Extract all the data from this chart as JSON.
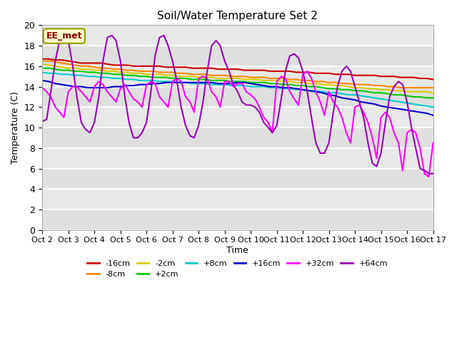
{
  "title": "Soil/Water Temperature Set 2",
  "xlabel": "Time",
  "ylabel": "Temperature (C)",
  "ylim": [
    0,
    20
  ],
  "xlim": [
    0,
    15
  ],
  "xtick_labels": [
    "Oct 2",
    "Oct 3",
    "Oct 4",
    "Oct 5",
    "Oct 6",
    "Oct 7",
    "Oct 8",
    "Oct 9",
    "Oct 10",
    "Oct 11",
    "Oct 12",
    "Oct 13",
    "Oct 14",
    "Oct 15",
    "Oct 16",
    "Oct 17"
  ],
  "xtick_positions": [
    0,
    1,
    2,
    3,
    4,
    5,
    6,
    7,
    8,
    9,
    10,
    11,
    12,
    13,
    14,
    15
  ],
  "ytick_labels": [
    "0",
    "2",
    "4",
    "6",
    "8",
    "10",
    "12",
    "14",
    "16",
    "18",
    "20"
  ],
  "ytick_positions": [
    0,
    2,
    4,
    6,
    8,
    10,
    12,
    14,
    16,
    18,
    20
  ],
  "annotation_text": "EE_met",
  "bg_color": "#e8e8e8",
  "series": [
    {
      "label": "-16cm",
      "color": "#cc0000",
      "x": [
        0,
        0.25,
        0.5,
        0.75,
        1,
        1.25,
        1.5,
        1.75,
        2,
        2.25,
        2.5,
        2.75,
        3,
        3.25,
        3.5,
        3.75,
        4,
        4.25,
        4.5,
        4.75,
        5,
        5.25,
        5.5,
        5.75,
        6,
        6.25,
        6.5,
        6.75,
        7,
        7.25,
        7.5,
        7.75,
        8,
        8.25,
        8.5,
        8.75,
        9,
        9.25,
        9.5,
        9.75,
        10,
        10.25,
        10.5,
        10.75,
        11,
        11.25,
        11.5,
        11.75,
        12,
        12.25,
        12.5,
        12.75,
        13,
        13.25,
        13.5,
        13.75,
        14,
        14.25,
        14.5,
        14.75,
        15
      ],
      "y": [
        16.7,
        16.7,
        16.6,
        16.6,
        16.5,
        16.4,
        16.3,
        16.3,
        16.3,
        16.3,
        16.2,
        16.1,
        16.1,
        16.1,
        16.0,
        16.0,
        16.0,
        16.0,
        16.0,
        15.9,
        15.9,
        15.9,
        15.9,
        15.8,
        15.8,
        15.8,
        15.8,
        15.7,
        15.7,
        15.7,
        15.7,
        15.6,
        15.6,
        15.6,
        15.6,
        15.5,
        15.5,
        15.5,
        15.5,
        15.4,
        15.4,
        15.4,
        15.3,
        15.3,
        15.3,
        15.2,
        15.2,
        15.2,
        15.1,
        15.1,
        15.1,
        15.1,
        15.0,
        15.0,
        15.0,
        14.9,
        14.9,
        14.9,
        14.8,
        14.8,
        14.7
      ]
    },
    {
      "label": "-8cm",
      "color": "#ff8800",
      "x": [
        0,
        0.25,
        0.5,
        0.75,
        1,
        1.25,
        1.5,
        1.75,
        2,
        2.25,
        2.5,
        2.75,
        3,
        3.25,
        3.5,
        3.75,
        4,
        4.25,
        4.5,
        4.75,
        5,
        5.25,
        5.5,
        5.75,
        6,
        6.25,
        6.5,
        6.75,
        7,
        7.25,
        7.5,
        7.75,
        8,
        8.25,
        8.5,
        8.75,
        9,
        9.25,
        9.5,
        9.75,
        10,
        10.25,
        10.5,
        10.75,
        11,
        11.25,
        11.5,
        11.75,
        12,
        12.25,
        12.5,
        12.75,
        13,
        13.25,
        13.5,
        13.75,
        14,
        14.25,
        14.5,
        14.75,
        15
      ],
      "y": [
        16.5,
        16.5,
        16.4,
        16.3,
        16.2,
        16.1,
        16.0,
        16.0,
        15.9,
        15.8,
        15.8,
        15.7,
        15.7,
        15.6,
        15.6,
        15.5,
        15.5,
        15.5,
        15.4,
        15.4,
        15.4,
        15.3,
        15.3,
        15.2,
        15.2,
        15.2,
        15.1,
        15.1,
        15.1,
        15.0,
        15.0,
        15.0,
        14.9,
        14.9,
        14.9,
        14.8,
        14.8,
        14.8,
        14.7,
        14.7,
        14.6,
        14.6,
        14.5,
        14.5,
        14.4,
        14.4,
        14.3,
        14.3,
        14.2,
        14.2,
        14.2,
        14.1,
        14.1,
        14.0,
        14.0,
        13.9,
        13.9,
        13.9,
        13.9,
        13.9,
        13.9
      ]
    },
    {
      "label": "-2cm",
      "color": "#ddcc00",
      "x": [
        0,
        0.25,
        0.5,
        0.75,
        1,
        1.25,
        1.5,
        1.75,
        2,
        2.25,
        2.5,
        2.75,
        3,
        3.25,
        3.5,
        3.75,
        4,
        4.25,
        4.5,
        4.75,
        5,
        5.25,
        5.5,
        5.75,
        6,
        6.25,
        6.5,
        6.75,
        7,
        7.25,
        7.5,
        7.75,
        8,
        8.25,
        8.5,
        8.75,
        9,
        9.25,
        9.5,
        9.75,
        10,
        10.25,
        10.5,
        10.75,
        11,
        11.25,
        11.5,
        11.75,
        12,
        12.25,
        12.5,
        12.75,
        13,
        13.25,
        13.5,
        13.75,
        14,
        14.25,
        14.5,
        14.75,
        15
      ],
      "y": [
        16.2,
        16.1,
        16.0,
        15.9,
        15.8,
        15.8,
        15.7,
        15.7,
        15.6,
        15.6,
        15.5,
        15.5,
        15.4,
        15.4,
        15.3,
        15.3,
        15.2,
        15.2,
        15.2,
        15.1,
        15.1,
        15.0,
        15.0,
        15.0,
        14.9,
        14.9,
        14.9,
        14.8,
        14.8,
        14.8,
        14.8,
        14.7,
        14.7,
        14.7,
        14.6,
        14.6,
        14.6,
        14.5,
        14.5,
        14.4,
        14.4,
        14.3,
        14.3,
        14.2,
        14.2,
        14.1,
        14.1,
        14.0,
        13.9,
        13.9,
        13.8,
        13.8,
        13.7,
        13.7,
        13.6,
        13.6,
        13.5,
        13.5,
        13.5,
        13.5,
        13.4
      ]
    },
    {
      "label": "+2cm",
      "color": "#00cc00",
      "x": [
        0,
        0.25,
        0.5,
        0.75,
        1,
        1.25,
        1.5,
        1.75,
        2,
        2.25,
        2.5,
        2.75,
        3,
        3.25,
        3.5,
        3.75,
        4,
        4.25,
        4.5,
        4.75,
        5,
        5.25,
        5.5,
        5.75,
        6,
        6.25,
        6.5,
        6.75,
        7,
        7.25,
        7.5,
        7.75,
        8,
        8.25,
        8.5,
        8.75,
        9,
        9.25,
        9.5,
        9.75,
        10,
        10.25,
        10.5,
        10.75,
        11,
        11.25,
        11.5,
        11.75,
        12,
        12.25,
        12.5,
        12.75,
        13,
        13.25,
        13.5,
        13.75,
        14,
        14.25,
        14.5,
        14.75,
        15
      ],
      "y": [
        15.8,
        15.8,
        15.7,
        15.6,
        15.6,
        15.5,
        15.5,
        15.4,
        15.4,
        15.3,
        15.3,
        15.2,
        15.2,
        15.1,
        15.1,
        15.0,
        15.0,
        14.9,
        14.9,
        14.9,
        14.8,
        14.8,
        14.8,
        14.7,
        14.7,
        14.7,
        14.6,
        14.6,
        14.6,
        14.5,
        14.5,
        14.5,
        14.4,
        14.4,
        14.4,
        14.3,
        14.3,
        14.2,
        14.2,
        14.1,
        14.1,
        14.0,
        14.0,
        13.9,
        13.8,
        13.8,
        13.7,
        13.7,
        13.6,
        13.6,
        13.5,
        13.4,
        13.4,
        13.3,
        13.2,
        13.2,
        13.1,
        13.0,
        13.0,
        12.9,
        12.9
      ]
    },
    {
      "label": "+8cm",
      "color": "#00cccc",
      "x": [
        0,
        0.25,
        0.5,
        0.75,
        1,
        1.25,
        1.5,
        1.75,
        2,
        2.25,
        2.5,
        2.75,
        3,
        3.25,
        3.5,
        3.75,
        4,
        4.25,
        4.5,
        4.75,
        5,
        5.25,
        5.5,
        5.75,
        6,
        6.25,
        6.5,
        6.75,
        7,
        7.25,
        7.5,
        7.75,
        8,
        8.25,
        8.5,
        8.75,
        9,
        9.25,
        9.5,
        9.75,
        10,
        10.25,
        10.5,
        10.75,
        11,
        11.25,
        11.5,
        11.75,
        12,
        12.25,
        12.5,
        12.75,
        13,
        13.25,
        13.5,
        13.75,
        14,
        14.25,
        14.5,
        14.75,
        15
      ],
      "y": [
        15.4,
        15.3,
        15.3,
        15.2,
        15.2,
        15.1,
        15.1,
        15.0,
        15.0,
        14.9,
        14.9,
        14.8,
        14.8,
        14.7,
        14.7,
        14.6,
        14.6,
        14.6,
        14.5,
        14.5,
        14.5,
        14.4,
        14.4,
        14.3,
        14.3,
        14.3,
        14.2,
        14.2,
        14.2,
        14.1,
        14.1,
        14.1,
        14.0,
        14.0,
        14.0,
        13.9,
        13.9,
        13.8,
        13.8,
        13.7,
        13.7,
        13.6,
        13.6,
        13.5,
        13.4,
        13.4,
        13.3,
        13.2,
        13.2,
        13.1,
        13.0,
        12.9,
        12.8,
        12.7,
        12.6,
        12.5,
        12.4,
        12.3,
        12.2,
        12.1,
        12.0
      ]
    },
    {
      "label": "+16cm",
      "color": "#0000cc",
      "x": [
        0,
        0.25,
        0.5,
        0.75,
        1,
        1.25,
        1.5,
        1.75,
        2,
        2.25,
        2.5,
        2.75,
        3,
        3.25,
        3.5,
        3.75,
        4,
        4.25,
        4.5,
        4.75,
        5,
        5.25,
        5.5,
        5.75,
        6,
        6.25,
        6.5,
        6.75,
        7,
        7.25,
        7.5,
        7.75,
        8,
        8.25,
        8.5,
        8.75,
        9,
        9.25,
        9.5,
        9.75,
        10,
        10.25,
        10.5,
        10.75,
        11,
        11.25,
        11.5,
        11.75,
        12,
        12.25,
        12.5,
        12.75,
        13,
        13.25,
        13.5,
        13.75,
        14,
        14.25,
        14.5,
        14.75,
        15
      ],
      "y": [
        14.6,
        14.5,
        14.3,
        14.2,
        14.1,
        14.0,
        14.0,
        13.9,
        13.9,
        13.9,
        13.9,
        14.0,
        14.0,
        14.1,
        14.1,
        14.2,
        14.2,
        14.3,
        14.3,
        14.4,
        14.4,
        14.4,
        14.4,
        14.4,
        14.4,
        14.4,
        14.4,
        14.3,
        14.3,
        14.3,
        14.4,
        14.4,
        14.3,
        14.2,
        14.1,
        14.0,
        14.0,
        13.9,
        13.9,
        13.8,
        13.7,
        13.6,
        13.5,
        13.4,
        13.2,
        13.1,
        12.9,
        12.8,
        12.7,
        12.5,
        12.4,
        12.3,
        12.1,
        12.0,
        11.9,
        11.8,
        11.7,
        11.6,
        11.5,
        11.4,
        11.2
      ]
    },
    {
      "label": "+32cm",
      "color": "#ff00ff",
      "x": [
        0,
        0.17,
        0.33,
        0.5,
        0.67,
        0.83,
        1,
        1.17,
        1.33,
        1.5,
        1.67,
        1.83,
        2,
        2.17,
        2.33,
        2.5,
        2.67,
        2.83,
        3,
        3.17,
        3.33,
        3.5,
        3.67,
        3.83,
        4,
        4.17,
        4.33,
        4.5,
        4.67,
        4.83,
        5,
        5.17,
        5.33,
        5.5,
        5.67,
        5.83,
        6,
        6.17,
        6.33,
        6.5,
        6.67,
        6.83,
        7,
        7.17,
        7.33,
        7.5,
        7.67,
        7.83,
        8,
        8.17,
        8.33,
        8.5,
        8.67,
        8.83,
        9,
        9.17,
        9.33,
        9.5,
        9.67,
        9.83,
        10,
        10.17,
        10.33,
        10.5,
        10.67,
        10.83,
        11,
        11.17,
        11.33,
        11.5,
        11.67,
        11.83,
        12,
        12.17,
        12.33,
        12.5,
        12.67,
        12.83,
        13,
        13.17,
        13.33,
        13.5,
        13.67,
        13.83,
        14,
        14.17,
        14.33,
        14.5,
        14.67,
        14.83,
        15
      ],
      "y": [
        13.9,
        13.5,
        13.0,
        12.0,
        11.5,
        11.0,
        13.5,
        14.0,
        14.0,
        13.5,
        13.0,
        12.5,
        14.0,
        14.5,
        14.2,
        13.5,
        13.0,
        12.5,
        13.8,
        14.2,
        13.5,
        12.8,
        12.5,
        12.0,
        14.2,
        14.5,
        14.3,
        13.0,
        12.5,
        12.0,
        14.5,
        14.8,
        14.5,
        13.0,
        12.5,
        11.5,
        14.8,
        15.0,
        14.8,
        13.5,
        13.0,
        12.0,
        14.5,
        14.5,
        14.0,
        14.3,
        14.3,
        13.5,
        13.2,
        12.8,
        12.0,
        11.0,
        10.5,
        9.5,
        14.5,
        15.0,
        14.8,
        13.5,
        12.8,
        12.2,
        15.2,
        15.5,
        14.8,
        13.5,
        12.5,
        11.2,
        13.5,
        12.5,
        12.0,
        11.0,
        9.5,
        8.5,
        12.0,
        12.2,
        11.5,
        10.5,
        9.0,
        7.0,
        11.0,
        11.5,
        11.0,
        9.5,
        8.5,
        5.8,
        9.5,
        9.8,
        9.5,
        8.0,
        5.5,
        5.2,
        8.5
      ]
    },
    {
      "label": "+64cm",
      "color": "#9900bb",
      "x": [
        0,
        0.17,
        0.33,
        0.5,
        0.67,
        0.83,
        1,
        1.17,
        1.33,
        1.5,
        1.67,
        1.83,
        2,
        2.17,
        2.33,
        2.5,
        2.67,
        2.83,
        3,
        3.17,
        3.33,
        3.5,
        3.67,
        3.83,
        4,
        4.17,
        4.33,
        4.5,
        4.67,
        4.83,
        5,
        5.17,
        5.33,
        5.5,
        5.67,
        5.83,
        6,
        6.17,
        6.33,
        6.5,
        6.67,
        6.83,
        7,
        7.17,
        7.33,
        7.5,
        7.67,
        7.83,
        8,
        8.17,
        8.33,
        8.5,
        8.67,
        8.83,
        9,
        9.17,
        9.33,
        9.5,
        9.67,
        9.83,
        10,
        10.17,
        10.33,
        10.5,
        10.67,
        10.83,
        11,
        11.17,
        11.33,
        11.5,
        11.67,
        11.83,
        12,
        12.17,
        12.33,
        12.5,
        12.67,
        12.83,
        13,
        13.17,
        13.33,
        13.5,
        13.67,
        13.83,
        14,
        14.17,
        14.33,
        14.5,
        14.67,
        14.83,
        15
      ],
      "y": [
        10.6,
        10.8,
        13.5,
        16.5,
        18.5,
        19.2,
        18.5,
        16.0,
        13.0,
        10.5,
        9.8,
        9.5,
        10.5,
        13.0,
        16.5,
        18.8,
        19.0,
        18.5,
        16.5,
        13.0,
        10.5,
        9.0,
        9.0,
        9.5,
        10.5,
        13.5,
        17.0,
        18.8,
        19.0,
        18.0,
        16.5,
        14.5,
        12.0,
        10.2,
        9.2,
        9.0,
        10.2,
        12.5,
        15.5,
        18.0,
        18.5,
        18.0,
        16.5,
        15.5,
        14.2,
        13.5,
        12.5,
        12.2,
        12.2,
        12.0,
        11.5,
        10.5,
        10.0,
        9.5,
        10.2,
        12.8,
        15.5,
        17.0,
        17.2,
        16.8,
        15.5,
        13.5,
        11.0,
        8.5,
        7.5,
        7.5,
        8.5,
        11.5,
        14.0,
        15.5,
        16.0,
        15.5,
        14.0,
        12.5,
        11.0,
        8.5,
        6.5,
        6.2,
        7.5,
        10.5,
        13.0,
        14.0,
        14.5,
        14.2,
        12.5,
        10.0,
        8.0,
        6.0,
        5.8,
        5.5,
        5.5
      ]
    }
  ]
}
